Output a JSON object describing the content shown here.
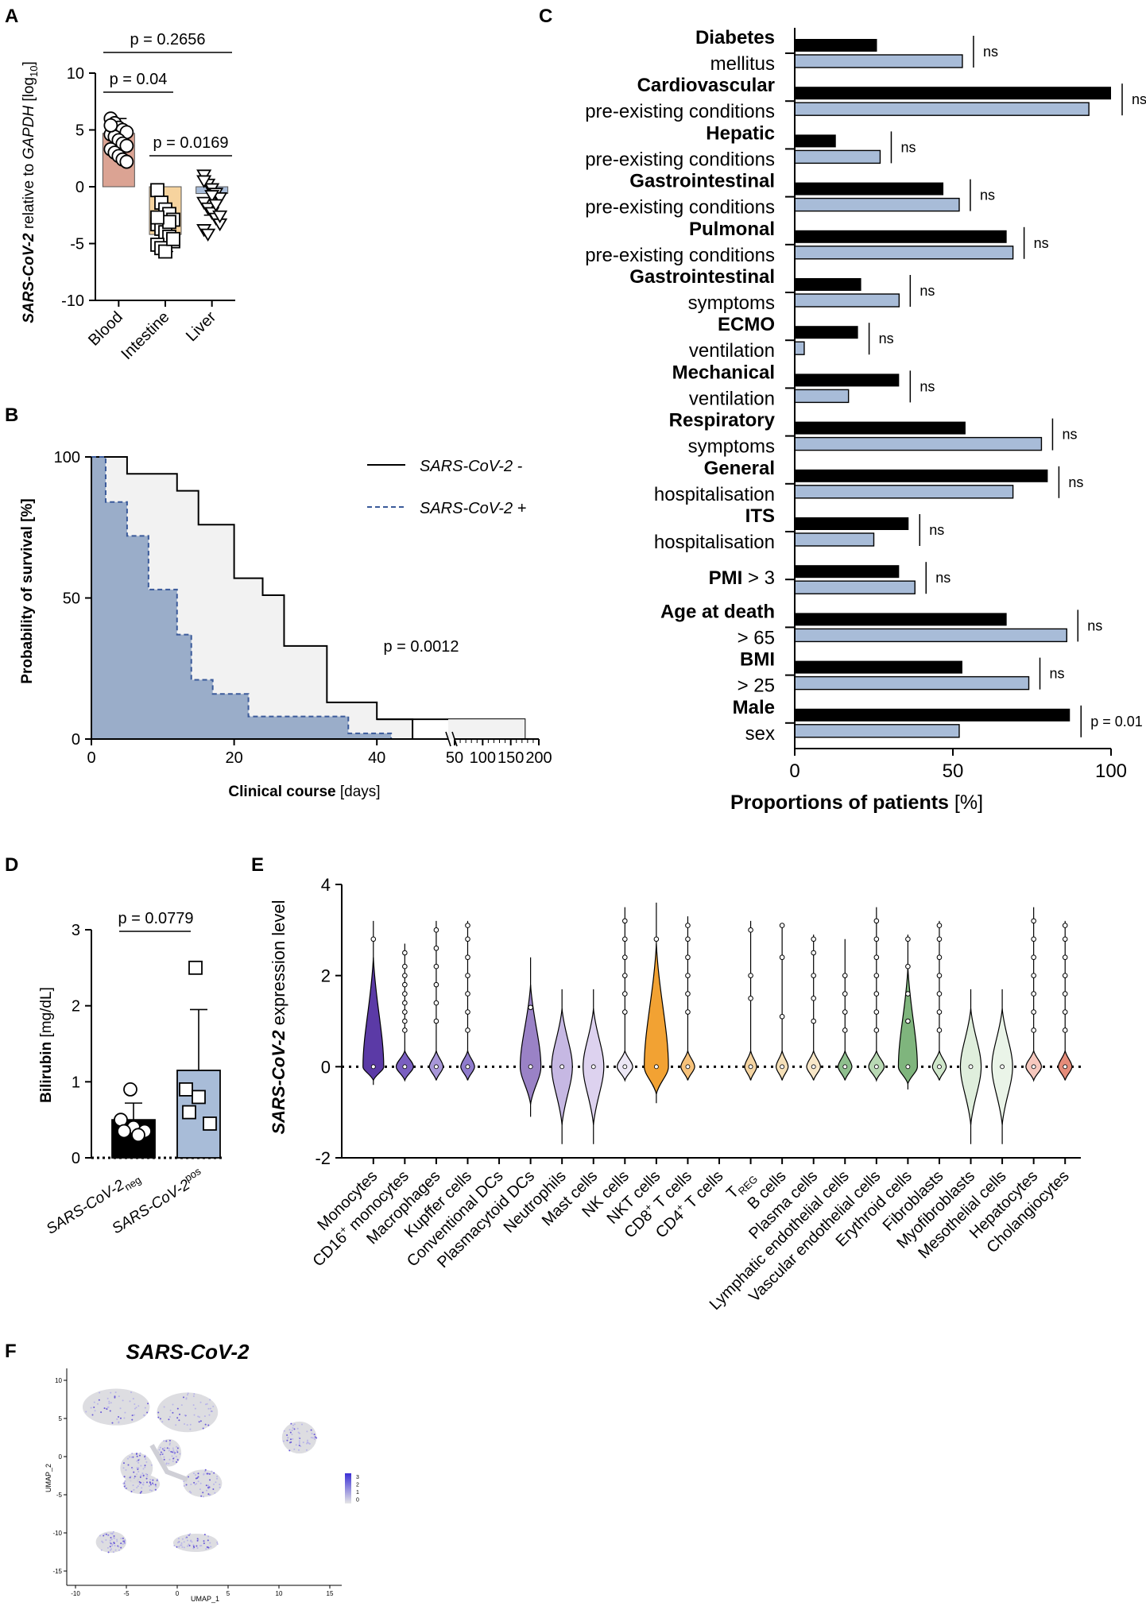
{
  "panels": {
    "A": "A",
    "B": "B",
    "C": "C",
    "D": "D",
    "E": "E",
    "F": "F"
  },
  "chart_data": [
    {
      "id": "A",
      "type": "bar",
      "title": "",
      "ylabel_italic": "SARS-CoV-2",
      "ylabel_rest": " relative to ",
      "ylabel_gene": "GAPDH",
      "ylabel_unit": " [log",
      "ylabel_sub": "10",
      "ylabel_close": "]",
      "ylim": [
        -10,
        10
      ],
      "yticks": [
        "10",
        "5",
        "0",
        "-5",
        "-10"
      ],
      "categories": [
        "Blood",
        "Intestine",
        "Liver"
      ],
      "values": [
        4.7,
        -4.2,
        -0.6
      ],
      "errors": [
        1.3,
        1.5,
        1.9
      ],
      "colors": [
        "#dba393",
        "#f6d39e",
        "#a8bcd8"
      ],
      "points": [
        [
          6.0,
          5.6,
          5.2,
          5.0,
          4.8,
          4.6,
          4.4,
          4.1,
          3.8,
          3.6,
          3.3,
          3.0,
          2.7,
          2.4,
          2.2,
          5.4
        ],
        [
          -0.3,
          -1.4,
          -2.0,
          -2.4,
          -2.9,
          -3.3,
          -3.7,
          -4.0,
          -4.4,
          -4.8,
          -5.1,
          -5.4,
          -5.7,
          -3.1,
          -4.6,
          -2.7
        ],
        [
          1.0,
          0.2,
          -0.2,
          -0.6,
          -1.0,
          -1.4,
          -1.9,
          -2.3,
          -2.8,
          -3.3,
          -3.8,
          -4.2,
          -0.8,
          -1.6,
          -2.6,
          0.5
        ]
      ],
      "markers": [
        "circle",
        "square",
        "triangle"
      ],
      "pvalues": [
        "p = 0.04",
        "p = 0.2656",
        "p = 0.0169"
      ]
    },
    {
      "id": "B",
      "type": "area",
      "ylabel": "Probability of survival [%]",
      "xlabel_bold": "Clinical course",
      "xlabel_rest": " [days]",
      "yticks": [
        "0",
        "50",
        "100"
      ],
      "xticks": [
        "0",
        "20",
        "40",
        "50",
        "100",
        "150",
        "200"
      ],
      "pvalue": "p = 0.0012",
      "series": [
        {
          "name": "SARS-CoV-2 -",
          "style": "solid",
          "fill": "#f2f2f2",
          "steps": [
            [
              0,
              100
            ],
            [
              5,
              100
            ],
            [
              5,
              94
            ],
            [
              12,
              94
            ],
            [
              12,
              88
            ],
            [
              15,
              88
            ],
            [
              15,
              76
            ],
            [
              20,
              76
            ],
            [
              20,
              57
            ],
            [
              24,
              57
            ],
            [
              24,
              51
            ],
            [
              27,
              51
            ],
            [
              27,
              33
            ],
            [
              33,
              33
            ],
            [
              33,
              13
            ],
            [
              40,
              13
            ],
            [
              40,
              7
            ],
            [
              45,
              7
            ],
            [
              45,
              0
            ]
          ]
        },
        {
          "name": "SARS-CoV-2 +",
          "style": "dashed",
          "fill": "#9aadc9",
          "steps": [
            [
              0,
              100
            ],
            [
              2,
              100
            ],
            [
              2,
              84
            ],
            [
              5,
              84
            ],
            [
              5,
              72
            ],
            [
              8,
              72
            ],
            [
              8,
              53
            ],
            [
              12,
              53
            ],
            [
              12,
              37
            ],
            [
              14,
              37
            ],
            [
              14,
              21
            ],
            [
              17,
              21
            ],
            [
              17,
              16
            ],
            [
              22,
              16
            ],
            [
              22,
              8
            ],
            [
              36,
              8
            ],
            [
              36,
              2
            ],
            [
              42,
              2
            ],
            [
              42,
              0
            ]
          ]
        }
      ]
    },
    {
      "id": "C",
      "type": "bar",
      "xlabel_bold": "Proportions of patients",
      "xlabel_rest": " [%]",
      "xlim": [
        0,
        100
      ],
      "xticks": [
        "0",
        "50",
        "100"
      ],
      "series_colors": [
        "#000000",
        "#a8bcd8"
      ],
      "groups": [
        {
          "bold": "Diabetes",
          "rest": "",
          "sub": "mellitus",
          "values": [
            26,
            53
          ],
          "sig": "ns"
        },
        {
          "bold": "Cardiovascular",
          "rest": "",
          "sub": "pre-existing conditions",
          "values": [
            100,
            93
          ],
          "sig": "ns"
        },
        {
          "bold": "Hepatic",
          "rest": "",
          "sub": "pre-existing conditions",
          "values": [
            13,
            27
          ],
          "sig": "ns"
        },
        {
          "bold": "Gastrointestinal",
          "rest": "",
          "sub": "pre-existing conditions",
          "values": [
            47,
            52
          ],
          "sig": "ns"
        },
        {
          "bold": "Pulmonal",
          "rest": "",
          "sub": "pre-existing conditions",
          "values": [
            67,
            69
          ],
          "sig": "ns"
        },
        {
          "bold": "Gastrointestinal",
          "rest": "",
          "sub": "symptoms",
          "values": [
            21,
            33
          ],
          "sig": "ns"
        },
        {
          "bold": "ECMO",
          "rest": "",
          "sub": "ventilation",
          "values": [
            20,
            3
          ],
          "sig": "ns"
        },
        {
          "bold": "Mechanical",
          "rest": "",
          "sub": "ventilation",
          "values": [
            33,
            17
          ],
          "sig": "ns"
        },
        {
          "bold": "Respiratory",
          "rest": "",
          "sub": "symptoms",
          "values": [
            54,
            78
          ],
          "sig": "ns"
        },
        {
          "bold": "General",
          "rest": "",
          "sub": "hospitalisation",
          "values": [
            80,
            69
          ],
          "sig": "ns"
        },
        {
          "bold": "ITS",
          "rest": "",
          "sub": "hospitalisation",
          "values": [
            36,
            25
          ],
          "sig": "ns"
        },
        {
          "bold": "PMI",
          "rest": " > 3",
          "sub": "",
          "values": [
            33,
            38
          ],
          "sig": "ns"
        },
        {
          "bold": "Age at death",
          "rest": "",
          "sub": "> 65",
          "values": [
            67,
            86
          ],
          "sig": "ns"
        },
        {
          "bold": "BMI",
          "rest": "",
          "sub": "> 25",
          "values": [
            53,
            74
          ],
          "sig": "ns"
        },
        {
          "bold": "Male",
          "rest": "",
          "sub": "sex",
          "values": [
            87,
            52
          ],
          "sig": "p = 0.01"
        }
      ]
    },
    {
      "id": "D",
      "type": "bar",
      "ylabel_bold": "Bilirubin",
      "ylabel_rest": " [mg/dL]",
      "ylim": [
        0,
        3
      ],
      "yticks": [
        "0",
        "1",
        "2",
        "3"
      ],
      "categories": [
        {
          "base": "SARS-CoV-2",
          "script": "neg",
          "pos": "sub"
        },
        {
          "base": "SARS-CoV-2",
          "script": "pos",
          "pos": "sup"
        }
      ],
      "values": [
        0.5,
        1.15
      ],
      "errors": [
        0.22,
        0.8
      ],
      "colors": [
        "#000000",
        "#a8bcd8"
      ],
      "points": [
        [
          0.9,
          0.5,
          0.4,
          0.35,
          0.35,
          0.3
        ],
        [
          2.5,
          0.9,
          0.8,
          0.6,
          0.45
        ]
      ],
      "markers": [
        "circle",
        "square"
      ],
      "pvalue": "p = 0.0779"
    },
    {
      "id": "E",
      "type": "violin",
      "ylabel_bold": "SARS-CoV-2",
      "ylabel_rest": " expression level",
      "ylim": [
        -2,
        4
      ],
      "yticks": [
        "4",
        "2",
        "0",
        "-2"
      ],
      "categories": [
        {
          "name": "Monocytes",
          "sup": ""
        },
        {
          "name": "CD16",
          "sup": "+",
          "after": " monocytes"
        },
        {
          "name": "Macrophages",
          "sup": ""
        },
        {
          "name": "Kupffer cells",
          "sup": ""
        },
        {
          "name": "Conventional DCs",
          "sup": ""
        },
        {
          "name": "Plasmacytoid DCs",
          "sup": ""
        },
        {
          "name": "Neutrophils",
          "sup": ""
        },
        {
          "name": "Mast cells",
          "sup": ""
        },
        {
          "name": "NK cells",
          "sup": ""
        },
        {
          "name": "NKT cells",
          "sup": ""
        },
        {
          "name": "CD8",
          "sup": "+",
          "after": " T cells"
        },
        {
          "name": "CD4",
          "sup": "+",
          "after": " T cells"
        },
        {
          "name": "T",
          "sub": "REG"
        },
        {
          "name": "B cells",
          "sup": ""
        },
        {
          "name": "Plasma cells",
          "sup": ""
        },
        {
          "name": "Lymphatic endothelial cells",
          "sup": ""
        },
        {
          "name": "Vascular endothelial cells",
          "sup": ""
        },
        {
          "name": "Erythroid cells",
          "sup": ""
        },
        {
          "name": "Fibroblasts",
          "sup": ""
        },
        {
          "name": "Myofibroblasts",
          "sup": ""
        },
        {
          "name": "Mesothelial cells",
          "sup": ""
        },
        {
          "name": "Hepatocytes",
          "sup": ""
        },
        {
          "name": "Cholangiocytes",
          "sup": ""
        }
      ],
      "violins": [
        {
          "max": 3.2,
          "min": -0.4,
          "width": 0.6,
          "color": "#5b3aa6",
          "outliers": [
            2.8
          ]
        },
        {
          "max": 2.7,
          "min": -0.3,
          "width": 0.5,
          "color": "#7a5fc0",
          "outliers": [
            0.8,
            1.0,
            1.2,
            1.4,
            1.6,
            1.8,
            2.0,
            2.2,
            2.5
          ]
        },
        {
          "max": 3.2,
          "min": -0.3,
          "width": 0.4,
          "color": "#a897d8",
          "outliers": [
            1.0,
            1.4,
            1.8,
            2.2,
            2.6,
            3.0
          ]
        },
        {
          "max": 3.2,
          "min": -0.3,
          "width": 0.4,
          "color": "#8f7bcc",
          "outliers": [
            0.8,
            1.2,
            1.6,
            2.0,
            2.4,
            2.8,
            3.1
          ]
        },
        {
          "max": 0,
          "min": 0,
          "width": 0,
          "color": "#ffffff",
          "outliers": []
        },
        {
          "max": 2.4,
          "min": -1.1,
          "width": 0.6,
          "color": "#9a82c6",
          "outliers": [
            1.3
          ]
        },
        {
          "max": 1.7,
          "min": -1.7,
          "width": 0.6,
          "color": "#c6b8e3",
          "outliers": []
        },
        {
          "max": 1.7,
          "min": -1.7,
          "width": 0.6,
          "color": "#ddd2ef",
          "outliers": []
        },
        {
          "max": 3.5,
          "min": -0.3,
          "width": 0.45,
          "color": "#ece7f5",
          "outliers": [
            1.2,
            1.6,
            2.0,
            2.4,
            2.8,
            3.2
          ]
        },
        {
          "max": 3.6,
          "min": -0.8,
          "width": 0.7,
          "color": "#f2a233",
          "outliers": [
            2.8
          ]
        },
        {
          "max": 3.3,
          "min": -0.3,
          "width": 0.4,
          "color": "#f7c27a",
          "outliers": [
            1.2,
            1.6,
            2.0,
            2.4,
            2.8,
            3.1
          ]
        },
        {
          "max": 0,
          "min": 0,
          "width": 0,
          "color": "#ffffff",
          "outliers": []
        },
        {
          "max": 3.2,
          "min": -0.3,
          "width": 0.35,
          "color": "#f4d4a2",
          "outliers": [
            1.5,
            2.0,
            3.0
          ]
        },
        {
          "max": 3.1,
          "min": -0.3,
          "width": 0.35,
          "color": "#f5e0b8",
          "outliers": [
            1.1,
            2.4,
            3.1
          ]
        },
        {
          "max": 2.9,
          "min": -0.3,
          "width": 0.4,
          "color": "#f8e7c8",
          "outliers": [
            1.0,
            1.5,
            2.0,
            2.5,
            2.8
          ]
        },
        {
          "max": 2.8,
          "min": -0.3,
          "width": 0.4,
          "color": "#8fbf8e",
          "outliers": [
            0.8,
            1.2,
            1.6,
            2.0
          ]
        },
        {
          "max": 3.5,
          "min": -0.3,
          "width": 0.45,
          "color": "#b9d9b4",
          "outliers": [
            0.8,
            1.2,
            1.6,
            2.0,
            2.4,
            2.8,
            3.2
          ]
        },
        {
          "max": 2.9,
          "min": -0.5,
          "width": 0.55,
          "color": "#7fb57d",
          "outliers": [
            1.0,
            1.6,
            2.2,
            2.8
          ]
        },
        {
          "max": 3.2,
          "min": -0.3,
          "width": 0.4,
          "color": "#cfe6ca",
          "outliers": [
            0.8,
            1.2,
            1.6,
            2.0,
            2.4,
            2.8,
            3.1
          ]
        },
        {
          "max": 1.7,
          "min": -1.7,
          "width": 0.6,
          "color": "#dfeedc",
          "outliers": []
        },
        {
          "max": 1.7,
          "min": -1.7,
          "width": 0.6,
          "color": "#eaf4e8",
          "outliers": []
        },
        {
          "max": 3.5,
          "min": -0.3,
          "width": 0.45,
          "color": "#f6c8be",
          "outliers": [
            0.8,
            1.2,
            1.6,
            2.0,
            2.4,
            2.8,
            3.2
          ]
        },
        {
          "max": 3.2,
          "min": -0.3,
          "width": 0.4,
          "color": "#e58c7a",
          "outliers": [
            0.8,
            1.2,
            1.6,
            2.0,
            2.4,
            2.8,
            3.1
          ]
        }
      ]
    },
    {
      "id": "F",
      "type": "scatter",
      "title": "SARS-CoV-2",
      "xlabel": "UMAP_1",
      "ylabel": "UMAP_2",
      "xticks": [
        "-10",
        "-5",
        "0",
        "5",
        "10",
        "15"
      ],
      "yticks": [
        "10",
        "5",
        "0",
        "-5",
        "-10",
        "-15"
      ],
      "colorbar": [
        "3",
        "2",
        "1",
        "0"
      ],
      "colorbar_colors": [
        "#3b2fd6",
        "#e6e6e6"
      ]
    }
  ]
}
